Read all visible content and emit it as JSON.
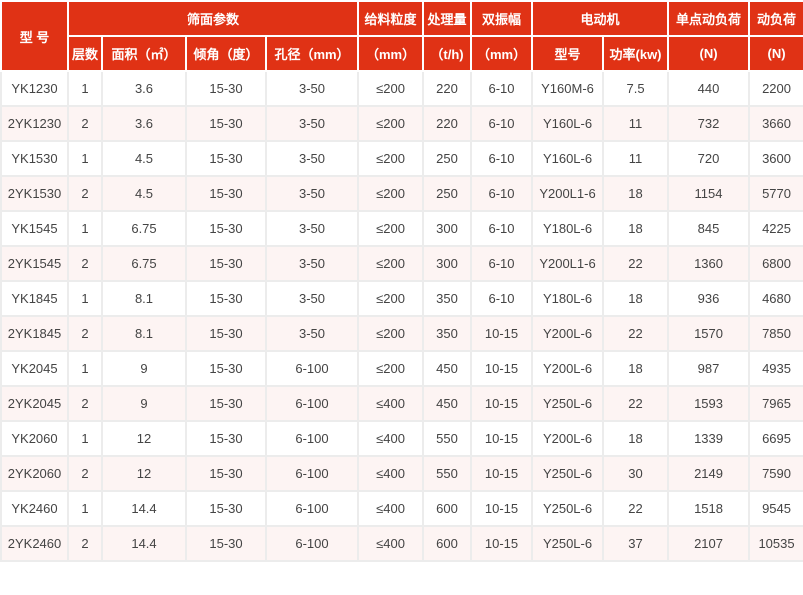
{
  "colors": {
    "header_bg": "#e03215",
    "header_text": "#ffffff",
    "stripe": "#fdf4f3",
    "border": "#ececec"
  },
  "header": {
    "model": "型 号",
    "screen_params": "筛面参数",
    "layers": "层数",
    "area": "面积（㎡）",
    "angle": "倾角（度）",
    "aperture": "孔径（mm）",
    "feed_size": "给料粒度",
    "feed_size_unit": "（mm）",
    "capacity": "处理量",
    "capacity_unit": "（t/h)",
    "amplitude": "双振幅",
    "amplitude_unit": "（mm）",
    "motor": "电动机",
    "motor_model": "型号",
    "motor_power": "功率(kw)",
    "point_load": "单点动负荷",
    "point_load_unit": "(N)",
    "dyn_load": "动负荷",
    "dyn_load_unit": "(N)"
  },
  "rows": [
    [
      "YK1230",
      "1",
      "3.6",
      "15-30",
      "3-50",
      "≤200",
      "220",
      "6-10",
      "Y160M-6",
      "7.5",
      "440",
      "2200"
    ],
    [
      "2YK1230",
      "2",
      "3.6",
      "15-30",
      "3-50",
      "≤200",
      "220",
      "6-10",
      "Y160L-6",
      "11",
      "732",
      "3660"
    ],
    [
      "YK1530",
      "1",
      "4.5",
      "15-30",
      "3-50",
      "≤200",
      "250",
      "6-10",
      "Y160L-6",
      "11",
      "720",
      "3600"
    ],
    [
      "2YK1530",
      "2",
      "4.5",
      "15-30",
      "3-50",
      "≤200",
      "250",
      "6-10",
      "Y200L1-6",
      "18",
      "1154",
      "5770"
    ],
    [
      "YK1545",
      "1",
      "6.75",
      "15-30",
      "3-50",
      "≤200",
      "300",
      "6-10",
      "Y180L-6",
      "18",
      "845",
      "4225"
    ],
    [
      "2YK1545",
      "2",
      "6.75",
      "15-30",
      "3-50",
      "≤200",
      "300",
      "6-10",
      "Y200L1-6",
      "22",
      "1360",
      "6800"
    ],
    [
      "YK1845",
      "1",
      "8.1",
      "15-30",
      "3-50",
      "≤200",
      "350",
      "6-10",
      "Y180L-6",
      "18",
      "936",
      "4680"
    ],
    [
      "2YK1845",
      "2",
      "8.1",
      "15-30",
      "3-50",
      "≤200",
      "350",
      "10-15",
      "Y200L-6",
      "22",
      "1570",
      "7850"
    ],
    [
      "YK2045",
      "1",
      "9",
      "15-30",
      "6-100",
      "≤200",
      "450",
      "10-15",
      "Y200L-6",
      "18",
      "987",
      "4935"
    ],
    [
      "2YK2045",
      "2",
      "9",
      "15-30",
      "6-100",
      "≤400",
      "450",
      "10-15",
      "Y250L-6",
      "22",
      "1593",
      "7965"
    ],
    [
      "YK2060",
      "1",
      "12",
      "15-30",
      "6-100",
      "≤400",
      "550",
      "10-15",
      "Y200L-6",
      "18",
      "1339",
      "6695"
    ],
    [
      "2YK2060",
      "2",
      "12",
      "15-30",
      "6-100",
      "≤400",
      "550",
      "10-15",
      "Y250L-6",
      "30",
      "2149",
      "7590"
    ],
    [
      "YK2460",
      "1",
      "14.4",
      "15-30",
      "6-100",
      "≤400",
      "600",
      "10-15",
      "Y250L-6",
      "22",
      "1518",
      "9545"
    ],
    [
      "2YK2460",
      "2",
      "14.4",
      "15-30",
      "6-100",
      "≤400",
      "600",
      "10-15",
      "Y250L-6",
      "37",
      "2107",
      "10535"
    ]
  ]
}
